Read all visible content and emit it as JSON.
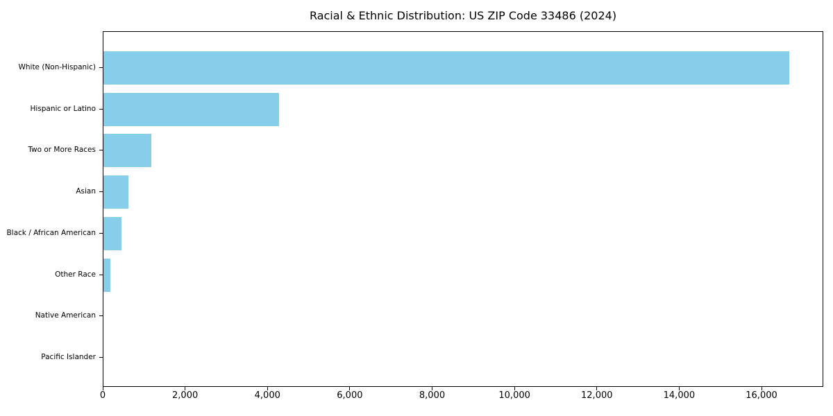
{
  "figure": {
    "title": "Racial & Ethnic Distribution: US ZIP Code 33486 (2024)"
  },
  "chart_data": {
    "type": "bar",
    "orientation": "horizontal",
    "title": "Racial & Ethnic Distribution: US ZIP Code 33486 (2024)",
    "categories": [
      "White (Non-Hispanic)",
      "Hispanic or Latino",
      "Two or More Races",
      "Asian",
      "Black / African American",
      "Other Race",
      "Native American",
      "Pacific Islander"
    ],
    "values": [
      16650,
      4260,
      1160,
      600,
      445,
      175,
      0,
      0
    ],
    "xlabel": "",
    "ylabel": "",
    "xlim": [
      0,
      17500
    ],
    "x_ticks": [
      0,
      2000,
      4000,
      6000,
      8000,
      10000,
      12000,
      14000,
      16000
    ],
    "x_tick_labels": [
      "0",
      "2,000",
      "4,000",
      "6,000",
      "8,000",
      "10,000",
      "12,000",
      "14,000",
      "16,000"
    ],
    "grid": false,
    "legend": "none",
    "bar_color": "#87CEEB",
    "axis_color": "#000000",
    "text_color": "#000000",
    "background": "#FFFFFF"
  }
}
